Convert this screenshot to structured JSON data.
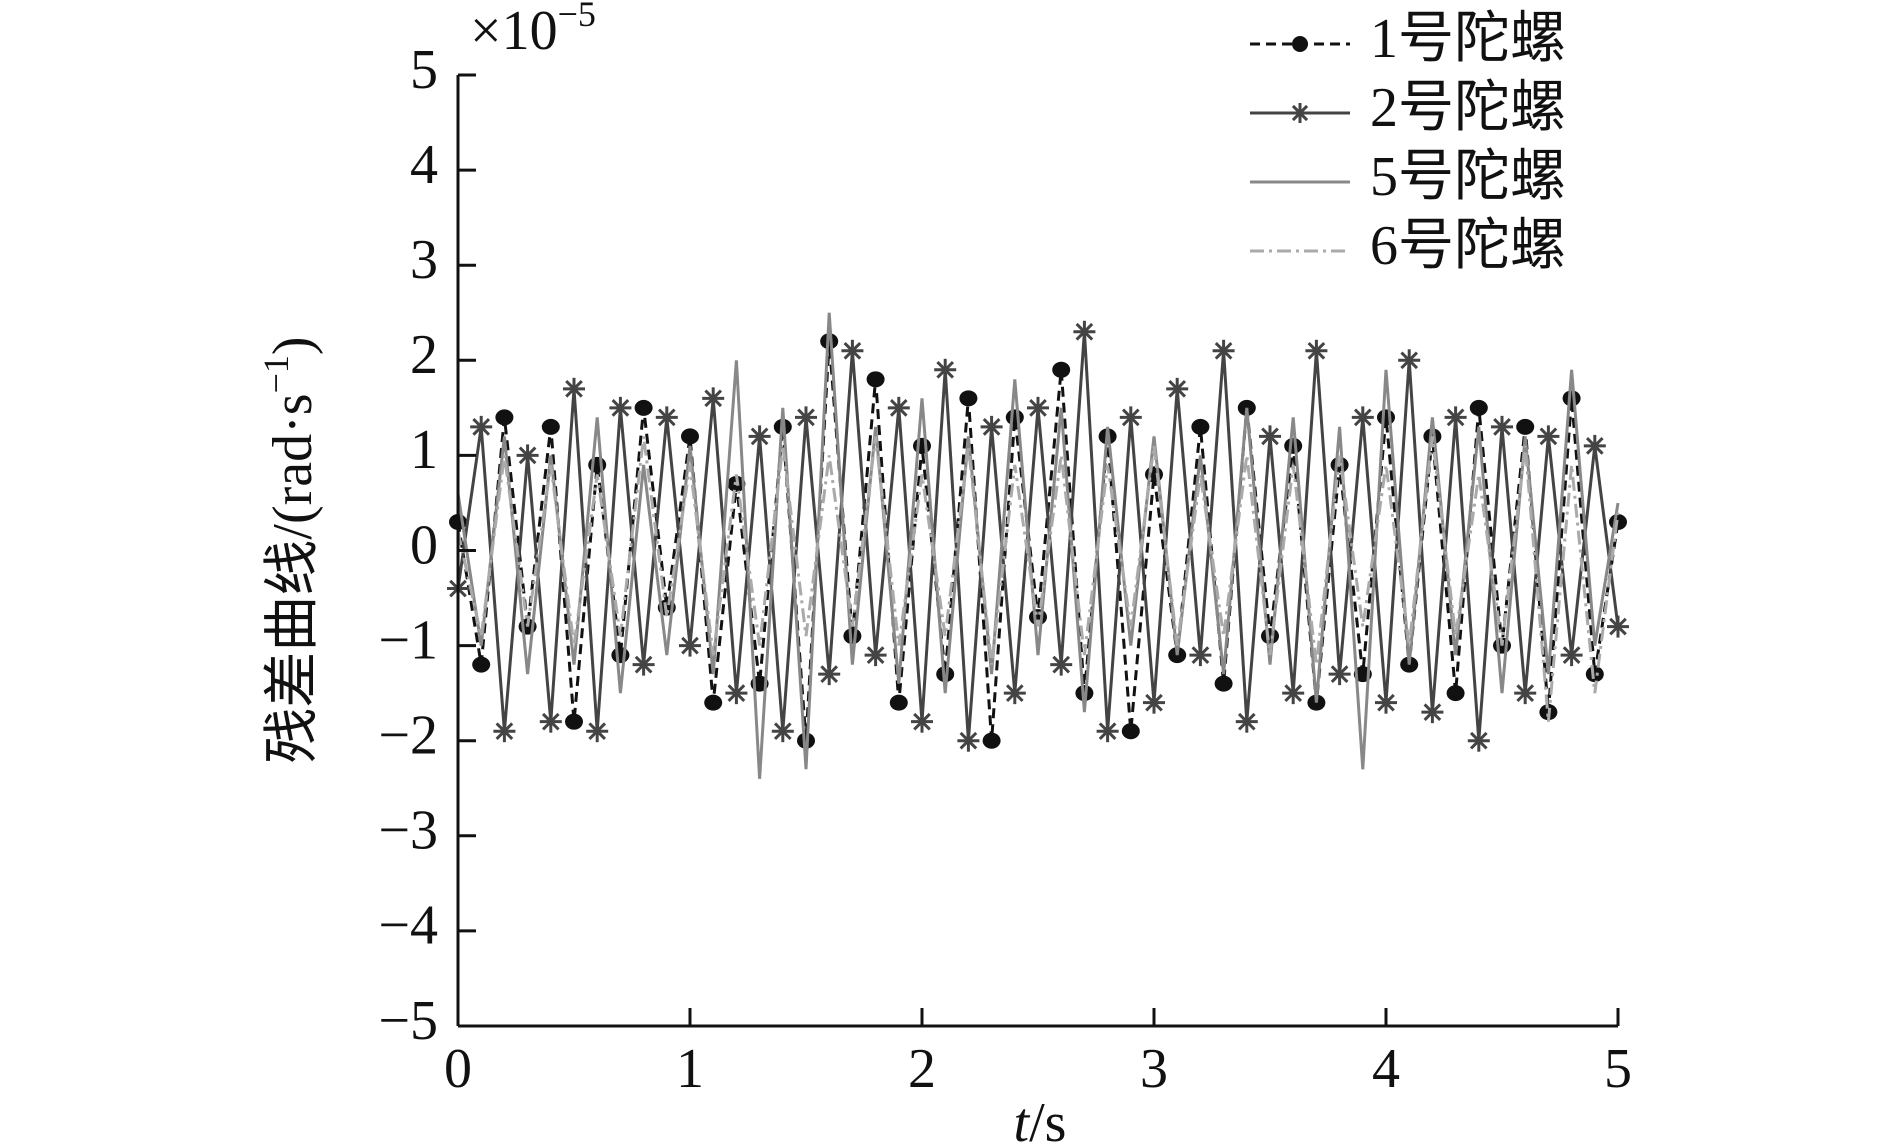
{
  "chart_data": {
    "type": "line",
    "ylabel": {
      "text": "残差曲线/(rad·s",
      "sup": "−1",
      "close": ")"
    },
    "xlabel": {
      "var": "t",
      "unit": "/s"
    },
    "multiplier": {
      "base": "×10",
      "exponent": "−5"
    },
    "x": [
      0,
      0.1,
      0.2,
      0.3,
      0.4,
      0.5,
      0.6,
      0.7,
      0.8,
      0.9,
      1,
      1.1,
      1.2,
      1.3,
      1.4,
      1.5,
      1.6,
      1.7,
      1.8,
      1.9,
      2,
      2.1,
      2.2,
      2.3,
      2.4,
      2.5,
      2.6,
      2.7,
      2.8,
      2.9,
      3,
      3.1,
      3.2,
      3.3,
      3.4,
      3.5,
      3.6,
      3.7,
      3.8,
      3.9,
      4,
      4.1,
      4.2,
      4.3,
      4.4,
      4.5,
      4.6,
      4.7,
      4.8,
      4.9,
      5
    ],
    "series": [
      {
        "name": "1号陀螺",
        "color": "#111111",
        "dash": "10,6",
        "marker": "dot",
        "values": [
          0.3,
          -1.2,
          1.4,
          -0.8,
          1.3,
          -1.8,
          0.9,
          -1.1,
          1.5,
          -0.6,
          1.2,
          -1.6,
          0.7,
          -1.4,
          1.3,
          -2.0,
          2.2,
          -0.9,
          1.8,
          -1.6,
          1.1,
          -1.3,
          1.6,
          -2.0,
          1.4,
          -0.7,
          1.9,
          -1.5,
          1.2,
          -1.9,
          0.8,
          -1.1,
          1.3,
          -1.4,
          1.5,
          -0.9,
          1.1,
          -1.6,
          0.9,
          -1.3,
          1.4,
          -1.2,
          1.2,
          -1.5,
          1.5,
          -1.0,
          1.3,
          -1.7,
          1.6,
          -1.3,
          0.3
        ]
      },
      {
        "name": "2号陀螺",
        "color": "#444444",
        "dash": "none",
        "marker": "star",
        "values": [
          -0.4,
          1.3,
          -1.9,
          1.0,
          -1.8,
          1.7,
          -1.9,
          1.5,
          -1.2,
          1.4,
          -1.0,
          1.6,
          -1.5,
          1.2,
          -1.9,
          1.4,
          -1.3,
          2.1,
          -1.1,
          1.5,
          -1.8,
          1.9,
          -2.0,
          1.3,
          -1.5,
          1.5,
          -1.2,
          2.3,
          -1.9,
          1.4,
          -1.6,
          1.7,
          -1.1,
          2.1,
          -1.8,
          1.2,
          -1.5,
          2.1,
          -1.3,
          1.4,
          -1.6,
          2.0,
          -1.7,
          1.4,
          -2.0,
          1.3,
          -1.5,
          1.2,
          -1.1,
          1.1,
          -0.8
        ]
      },
      {
        "name": "5号陀螺",
        "color": "#888888",
        "dash": "none",
        "marker": "none",
        "values": [
          0.6,
          -1.0,
          1.2,
          -1.3,
          1.0,
          -1.2,
          1.4,
          -1.5,
          0.9,
          -1.1,
          1.1,
          -1.3,
          2.0,
          -2.4,
          1.5,
          -2.3,
          2.5,
          -1.2,
          1.3,
          -1.4,
          1.6,
          -1.5,
          1.2,
          -1.3,
          1.8,
          -1.1,
          1.5,
          -1.7,
          1.3,
          -1.0,
          1.2,
          -1.1,
          1.0,
          -1.3,
          1.5,
          -1.2,
          1.4,
          -1.6,
          1.3,
          -2.3,
          1.9,
          -1.2,
          1.4,
          -1.1,
          1.3,
          -1.5,
          1.2,
          -1.3,
          1.9,
          -1.0,
          0.5
        ]
      },
      {
        "name": "6号陀螺",
        "color": "#aaaaaa",
        "dash": "14,5,3,5",
        "marker": "none",
        "values": [
          0.2,
          -0.9,
          1.0,
          -0.8,
          0.9,
          -1.0,
          0.8,
          -0.9,
          1.2,
          -0.7,
          0.9,
          -1.1,
          0.8,
          -1.0,
          1.1,
          -0.9,
          1.0,
          -0.8,
          1.2,
          -1.0,
          0.8,
          -0.9,
          1.1,
          -1.2,
          0.9,
          -0.8,
          1.0,
          -1.1,
          0.9,
          -0.8,
          1.1,
          -1.0,
          0.8,
          -0.9,
          1.0,
          -1.1,
          0.9,
          -1.2,
          1.0,
          -0.8,
          0.9,
          -1.0,
          1.2,
          -0.9,
          0.8,
          -1.0,
          1.1,
          -1.8,
          0.9,
          -1.5,
          0.4
        ]
      }
    ],
    "xlim": [
      0,
      5
    ],
    "xticks": [
      0,
      1,
      2,
      3,
      4,
      5
    ],
    "ylim": [
      -5,
      5
    ],
    "yticks": [
      {
        "value": -5,
        "label": "−5"
      },
      {
        "value": -4,
        "label": "−4"
      },
      {
        "value": -3,
        "label": "−3"
      },
      {
        "value": -2,
        "label": "−2"
      },
      {
        "value": -1,
        "label": "−1"
      },
      0,
      1,
      2,
      3,
      4,
      5
    ],
    "legend": "upper right",
    "grid": false
  }
}
